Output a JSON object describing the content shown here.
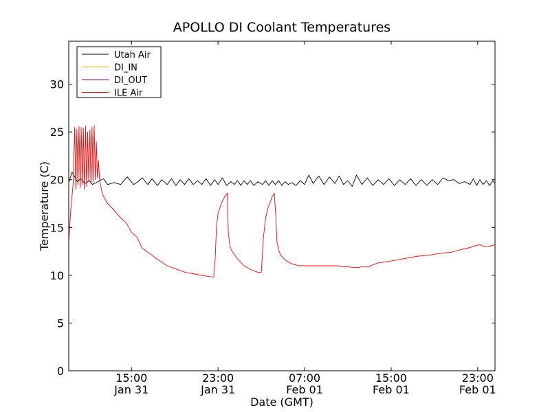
{
  "chart_data": {
    "type": "line",
    "title": "APOLLO DI Coolant Temperatures",
    "xlabel": "Date (GMT)",
    "ylabel": "Temperature (C)",
    "xlim": [
      9.2,
      48.6
    ],
    "ylim": [
      0,
      34.5
    ],
    "yticks": [
      0,
      5,
      10,
      15,
      20,
      25,
      30
    ],
    "xticks": [
      {
        "value": 15,
        "time": "15:00",
        "date": "Jan 31"
      },
      {
        "value": 23,
        "time": "23:00",
        "date": "Jan 31"
      },
      {
        "value": 31,
        "time": "07:00",
        "date": "Feb 01"
      },
      {
        "value": 39,
        "time": "15:00",
        "date": "Feb 01"
      },
      {
        "value": 47,
        "time": "23:00",
        "date": "Feb 01"
      }
    ],
    "x_unit": "hours since 00:00 Jan 31 (GMT)",
    "legend_position": "top-left",
    "series": [
      {
        "name": "Utah Air",
        "color": "#000000",
        "x": [
          9.2,
          9.5,
          10.0,
          10.3,
          10.7,
          11.1,
          11.4,
          11.9,
          12.4,
          12.8,
          13.4,
          14.0,
          14.6,
          15.2,
          15.6,
          16.0,
          16.5,
          16.9,
          17.4,
          17.8,
          18.3,
          18.7,
          19.1,
          19.5,
          19.9,
          20.3,
          20.7,
          21.1,
          21.5,
          21.9,
          22.3,
          22.7,
          23.0,
          23.4,
          23.8,
          24.2,
          24.5,
          24.8,
          25.1,
          25.4,
          25.7,
          26.0,
          26.3,
          26.7,
          27.1,
          27.4,
          27.7,
          28.0,
          28.3,
          28.6,
          28.9,
          29.2,
          29.5,
          29.8,
          30.2,
          30.6,
          31.0,
          31.4,
          31.8,
          32.3,
          32.8,
          33.3,
          33.8,
          34.2,
          34.6,
          35.0,
          35.4,
          35.8,
          36.3,
          36.8,
          37.3,
          37.8,
          38.3,
          38.8,
          39.3,
          39.8,
          40.3,
          40.8,
          41.3,
          41.8,
          42.3,
          42.8,
          43.3,
          43.8,
          44.3,
          44.8,
          45.3,
          45.8,
          46.3,
          46.6,
          46.9,
          47.2,
          47.5,
          47.8,
          48.1,
          48.4,
          48.6
        ],
        "y": [
          19.7,
          20.8,
          19.8,
          20.1,
          19.6,
          19.9,
          19.5,
          19.8,
          20.1,
          19.5,
          19.7,
          19.5,
          20.3,
          19.5,
          19.8,
          20.2,
          19.5,
          20.1,
          19.4,
          20.0,
          19.5,
          20.1,
          19.4,
          20.0,
          19.5,
          20.1,
          19.5,
          19.9,
          19.5,
          20.1,
          19.4,
          20.0,
          19.5,
          20.2,
          19.4,
          19.8,
          19.5,
          19.9,
          19.4,
          19.9,
          19.5,
          19.9,
          19.4,
          19.8,
          19.5,
          19.9,
          19.4,
          19.9,
          19.5,
          19.9,
          19.4,
          19.8,
          19.5,
          19.7,
          19.4,
          19.9,
          19.5,
          20.5,
          19.6,
          20.4,
          19.5,
          20.3,
          19.6,
          20.4,
          19.5,
          19.9,
          19.3,
          20.5,
          19.5,
          20.2,
          19.4,
          20.0,
          19.5,
          20.1,
          19.4,
          20.0,
          19.5,
          20.1,
          19.4,
          20.0,
          19.4,
          20.0,
          19.5,
          20.2,
          19.9,
          20.0,
          19.6,
          19.8,
          19.5,
          20.1,
          19.4,
          20.0,
          19.5,
          19.9,
          19.4,
          19.9,
          19.6
        ]
      },
      {
        "name": "DI_IN",
        "color": "#ffaa00",
        "x": [],
        "y": []
      },
      {
        "name": "DI_OUT",
        "color": "#800080",
        "x": [],
        "y": []
      },
      {
        "name": "ILE Air",
        "color": "#ff0000",
        "x": [
          9.2,
          9.4,
          9.6,
          9.75,
          9.85,
          9.95,
          10.05,
          10.15,
          10.25,
          10.35,
          10.45,
          10.55,
          10.65,
          10.75,
          10.85,
          10.95,
          11.05,
          11.15,
          11.25,
          11.35,
          11.45,
          11.55,
          11.65,
          11.75,
          11.85,
          11.95,
          12.05,
          12.3,
          12.8,
          13.4,
          14.0,
          14.5,
          15.0,
          15.5,
          16.0,
          16.3,
          16.5,
          16.8,
          17.2,
          17.5,
          17.8,
          18.0,
          18.3,
          19.0,
          20.0,
          21.0,
          22.0,
          22.6,
          22.75,
          22.85,
          23.0,
          23.3,
          23.6,
          23.85,
          23.95,
          24.1,
          24.3,
          24.8,
          25.4,
          26.0,
          26.7,
          27.0,
          27.2,
          27.4,
          27.6,
          27.8,
          28.0,
          28.2,
          28.35,
          28.45,
          28.6,
          28.8,
          29.2,
          29.8,
          30.5,
          31.0,
          32.0,
          33.0,
          34.0,
          34.5,
          35.0,
          35.5,
          36.0,
          36.3,
          36.6,
          37.0,
          37.3,
          37.8,
          38.5,
          39.5,
          40.5,
          41.5,
          42.5,
          43.5,
          44.5,
          45.5,
          46.3,
          46.8,
          47.2,
          47.6,
          48.0,
          48.6
        ],
        "y": [
          13.5,
          17.0,
          19.5,
          25.5,
          19.0,
          25.3,
          19.5,
          25.6,
          19.2,
          25.5,
          19.5,
          25.4,
          19.0,
          25.6,
          19.3,
          25.0,
          19.8,
          25.2,
          19.6,
          25.5,
          19.8,
          25.7,
          20.0,
          24.0,
          20.2,
          22.0,
          20.0,
          18.5,
          17.5,
          16.8,
          16.0,
          15.5,
          14.5,
          14.0,
          12.8,
          12.6,
          12.4,
          12.2,
          11.8,
          11.6,
          11.4,
          11.2,
          11.0,
          10.7,
          10.3,
          10.1,
          9.9,
          9.8,
          12.0,
          15.0,
          16.5,
          17.5,
          18.2,
          18.6,
          14.5,
          13.0,
          12.5,
          11.7,
          11.0,
          10.6,
          10.3,
          10.3,
          14.0,
          16.0,
          17.0,
          17.6,
          18.2,
          18.6,
          16.0,
          13.5,
          12.6,
          12.1,
          11.6,
          11.2,
          11.0,
          11.0,
          11.0,
          11.0,
          11.0,
          10.9,
          10.9,
          10.8,
          10.8,
          10.9,
          10.9,
          10.9,
          11.1,
          11.3,
          11.4,
          11.6,
          11.8,
          12.0,
          12.1,
          12.3,
          12.4,
          12.7,
          12.9,
          13.1,
          13.2,
          13.0,
          13.0,
          13.2
        ]
      }
    ]
  }
}
